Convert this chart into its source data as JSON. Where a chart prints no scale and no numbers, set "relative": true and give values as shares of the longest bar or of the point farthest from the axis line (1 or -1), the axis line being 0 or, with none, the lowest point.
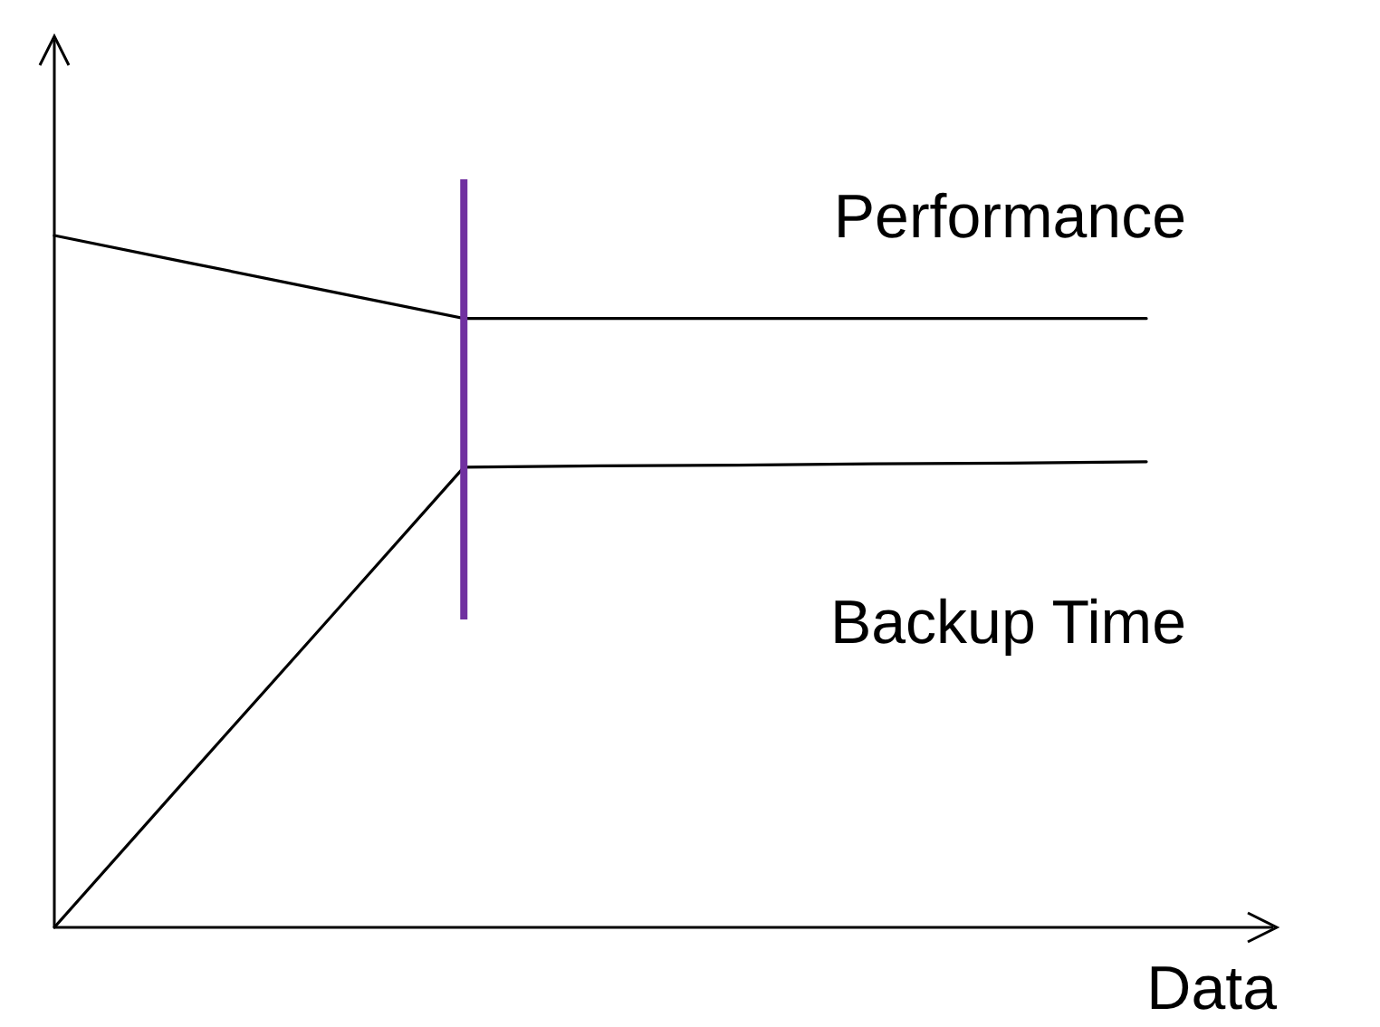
{
  "chart_data": {
    "type": "line",
    "relative": true,
    "xlabel": "Data",
    "categories": [
      null,
      null,
      null,
      null,
      null,
      null,
      null,
      null,
      null
    ],
    "series": [
      {
        "name": "Performance",
        "color": "#000000",
        "values": [
          1,
          0.96,
          0.92,
          0.88,
          0.88,
          0.88,
          0.88,
          0.88,
          0.88
        ]
      },
      {
        "name": "Backup Time",
        "color": "#000000",
        "values": [
          0,
          0.222,
          0.443,
          0.665,
          0.667,
          0.668,
          0.67,
          0.671,
          0.673
        ]
      }
    ],
    "marker": "none",
    "line_style": "solid",
    "grid": false
  }
}
